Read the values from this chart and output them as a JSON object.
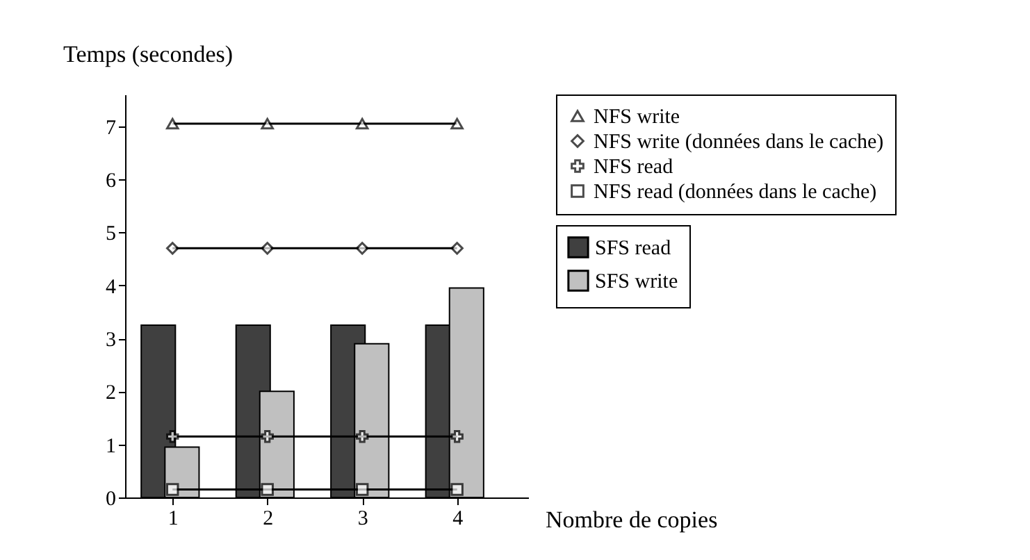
{
  "chart_data": {
    "type": "bar",
    "xlabel": "Nombre de copies",
    "ylabel": "Temps (secondes)",
    "categories": [
      "1",
      "2",
      "3",
      "4"
    ],
    "series": [
      {
        "name": "NFS write",
        "type": "line",
        "marker": "triangle",
        "color": "#000000",
        "values": [
          7.05,
          7.05,
          7.05,
          7.05
        ]
      },
      {
        "name": "NFS write (données dans le cache)",
        "type": "line",
        "marker": "diamond",
        "color": "#000000",
        "values": [
          4.7,
          4.7,
          4.7,
          4.7
        ]
      },
      {
        "name": "NFS read",
        "type": "line",
        "marker": "cross",
        "color": "#000000",
        "values": [
          1.15,
          1.15,
          1.15,
          1.15
        ]
      },
      {
        "name": "NFS read (données dans le cache)",
        "type": "line",
        "marker": "square",
        "color": "#000000",
        "values": [
          0.15,
          0.15,
          0.15,
          0.15
        ]
      },
      {
        "name": "SFS read",
        "color": "#404040",
        "values": [
          3.25,
          3.25,
          3.25,
          3.25
        ]
      },
      {
        "name": "SFS write",
        "color": "#c0c0c0",
        "values": [
          0.95,
          2.0,
          2.9,
          3.95
        ]
      }
    ],
    "ylim": [
      0,
      7.6
    ],
    "yticks": [
      0,
      1,
      2,
      3,
      4,
      5,
      6,
      7
    ],
    "grid": false,
    "legend": "right",
    "line_style": "solid"
  }
}
